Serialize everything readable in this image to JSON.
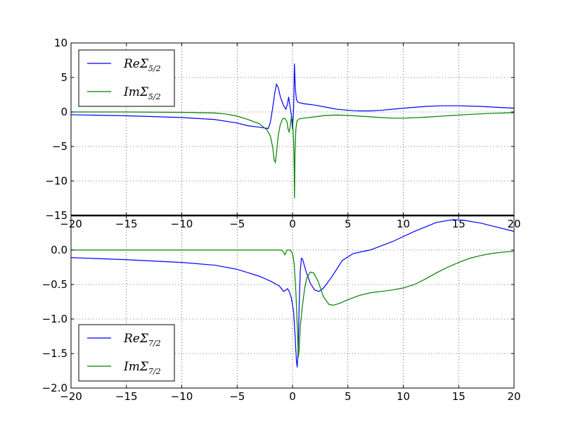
{
  "chart_data": [
    {
      "type": "line",
      "title": "",
      "xlabel": "",
      "ylabel": "",
      "xlim": [
        -20,
        20
      ],
      "ylim": [
        -15,
        10
      ],
      "grid": true,
      "legend_position": "upper-left",
      "x_ticks": [
        -20,
        -15,
        -10,
        -5,
        0,
        5,
        10,
        15,
        20
      ],
      "x_tick_labels": [
        "−20",
        "−15",
        "−10",
        "−5",
        "0",
        "5",
        "10",
        "15",
        "20"
      ],
      "y_ticks": [
        -15,
        -10,
        -5,
        0,
        5,
        10
      ],
      "y_tick_labels": [
        "−15",
        "−10",
        "−5",
        "0",
        "5",
        "10"
      ],
      "series": [
        {
          "name_main": "ReΣ",
          "name_sub": "5/2",
          "color": "#0000ff",
          "points": [
            [
              -20,
              -0.4
            ],
            [
              -15,
              -0.55
            ],
            [
              -10,
              -0.8
            ],
            [
              -7,
              -1.1
            ],
            [
              -5,
              -1.6
            ],
            [
              -4,
              -2.0
            ],
            [
              -3,
              -2.2
            ],
            [
              -2.2,
              -2.4
            ],
            [
              -2.0,
              -1.5
            ],
            [
              -1.8,
              0.5
            ],
            [
              -1.6,
              2.8
            ],
            [
              -1.45,
              4.0
            ],
            [
              -1.3,
              3.6
            ],
            [
              -1.1,
              2.2
            ],
            [
              -0.8,
              0.9
            ],
            [
              -0.6,
              0.4
            ],
            [
              -0.45,
              1.2
            ],
            [
              -0.35,
              2.2
            ],
            [
              -0.25,
              1.0
            ],
            [
              -0.1,
              -0.5
            ],
            [
              0.0,
              -2.5
            ],
            [
              0.1,
              0.5
            ],
            [
              0.17,
              7.0
            ],
            [
              0.25,
              3.5
            ],
            [
              0.35,
              1.8
            ],
            [
              0.5,
              1.4
            ],
            [
              1,
              1.2
            ],
            [
              2,
              1.0
            ],
            [
              3,
              0.7
            ],
            [
              4,
              0.4
            ],
            [
              5,
              0.25
            ],
            [
              6,
              0.15
            ],
            [
              7,
              0.15
            ],
            [
              8,
              0.25
            ],
            [
              10,
              0.55
            ],
            [
              12,
              0.8
            ],
            [
              13.5,
              0.9
            ],
            [
              15,
              0.9
            ],
            [
              17,
              0.8
            ],
            [
              20,
              0.55
            ]
          ]
        },
        {
          "name_main": "ImΣ",
          "name_sub": "5/2",
          "color": "#008000",
          "points": [
            [
              -20,
              0.0
            ],
            [
              -15,
              0.0
            ],
            [
              -10,
              -0.05
            ],
            [
              -7,
              -0.15
            ],
            [
              -6,
              -0.3
            ],
            [
              -5,
              -0.6
            ],
            [
              -4,
              -1.1
            ],
            [
              -3,
              -1.7
            ],
            [
              -2.3,
              -2.6
            ],
            [
              -2.0,
              -3.5
            ],
            [
              -1.8,
              -5.0
            ],
            [
              -1.65,
              -7.0
            ],
            [
              -1.55,
              -7.3
            ],
            [
              -1.45,
              -6.0
            ],
            [
              -1.3,
              -3.5
            ],
            [
              -1.1,
              -1.8
            ],
            [
              -0.9,
              -1.0
            ],
            [
              -0.7,
              -0.9
            ],
            [
              -0.5,
              -1.4
            ],
            [
              -0.4,
              -2.5
            ],
            [
              -0.3,
              -2.9
            ],
            [
              -0.2,
              -2.0
            ],
            [
              -0.1,
              -0.6
            ],
            [
              0.0,
              -1.5
            ],
            [
              0.1,
              -4.0
            ],
            [
              0.15,
              -8.0
            ],
            [
              0.18,
              -12.5
            ],
            [
              0.22,
              -6.0
            ],
            [
              0.3,
              -2.5
            ],
            [
              0.4,
              -1.3
            ],
            [
              0.6,
              -1.0
            ],
            [
              1,
              -0.9
            ],
            [
              2,
              -0.7
            ],
            [
              3,
              -0.5
            ],
            [
              4,
              -0.45
            ],
            [
              5,
              -0.5
            ],
            [
              6,
              -0.6
            ],
            [
              7,
              -0.7
            ],
            [
              8,
              -0.8
            ],
            [
              9,
              -0.9
            ],
            [
              10,
              -0.9
            ],
            [
              12,
              -0.75
            ],
            [
              14,
              -0.55
            ],
            [
              16,
              -0.35
            ],
            [
              18,
              -0.2
            ],
            [
              20,
              -0.1
            ]
          ]
        }
      ]
    },
    {
      "type": "line",
      "title": "",
      "xlabel": "",
      "ylabel": "",
      "xlim": [
        -20,
        20
      ],
      "ylim": [
        -2.0,
        0.5
      ],
      "grid": true,
      "legend_position": "lower-left",
      "x_ticks": [
        -20,
        -15,
        -10,
        -5,
        0,
        5,
        10,
        15,
        20
      ],
      "x_tick_labels": [
        "−20",
        "−15",
        "−10",
        "−5",
        "0",
        "5",
        "10",
        "15",
        "20"
      ],
      "y_ticks": [
        -2.0,
        -1.5,
        -1.0,
        -0.5,
        0.0
      ],
      "y_tick_labels": [
        "−2.0",
        "−1.5",
        "−1.0",
        "−0.5",
        "0.0"
      ],
      "series": [
        {
          "name_main": "ReΣ",
          "name_sub": "7/2",
          "color": "#0000ff",
          "points": [
            [
              -20,
              -0.11
            ],
            [
              -15,
              -0.14
            ],
            [
              -10,
              -0.18
            ],
            [
              -7,
              -0.22
            ],
            [
              -5,
              -0.28
            ],
            [
              -4,
              -0.33
            ],
            [
              -3,
              -0.38
            ],
            [
              -2,
              -0.45
            ],
            [
              -1.2,
              -0.52
            ],
            [
              -0.8,
              -0.6
            ],
            [
              -0.6,
              -0.58
            ],
            [
              -0.45,
              -0.56
            ],
            [
              -0.3,
              -0.6
            ],
            [
              -0.1,
              -0.7
            ],
            [
              0.1,
              -0.9
            ],
            [
              0.25,
              -1.3
            ],
            [
              0.35,
              -1.6
            ],
            [
              0.42,
              -1.7
            ],
            [
              0.5,
              -1.5
            ],
            [
              0.6,
              -0.8
            ],
            [
              0.7,
              -0.3
            ],
            [
              0.8,
              -0.12
            ],
            [
              0.9,
              -0.13
            ],
            [
              1.2,
              -0.3
            ],
            [
              1.6,
              -0.48
            ],
            [
              2.0,
              -0.58
            ],
            [
              2.4,
              -0.6
            ],
            [
              2.8,
              -0.55
            ],
            [
              3.5,
              -0.4
            ],
            [
              4.5,
              -0.15
            ],
            [
              5.5,
              -0.05
            ],
            [
              7,
              0.0
            ],
            [
              9,
              0.12
            ],
            [
              11,
              0.27
            ],
            [
              13,
              0.4
            ],
            [
              14.5,
              0.44
            ],
            [
              15.5,
              0.43
            ],
            [
              17,
              0.39
            ],
            [
              18.5,
              0.33
            ],
            [
              20,
              0.27
            ]
          ]
        },
        {
          "name_main": "ImΣ",
          "name_sub": "7/2",
          "color": "#008000",
          "points": [
            [
              -20,
              0.0
            ],
            [
              -15,
              0.0
            ],
            [
              -10,
              0.0
            ],
            [
              -7,
              0.0
            ],
            [
              -5,
              0.0
            ],
            [
              -3,
              0.0
            ],
            [
              -1.5,
              0.0
            ],
            [
              -1.0,
              0.0
            ],
            [
              -0.8,
              -0.03
            ],
            [
              -0.7,
              -0.07
            ],
            [
              -0.6,
              -0.04
            ],
            [
              -0.5,
              0.0
            ],
            [
              -0.2,
              0.0
            ],
            [
              0.0,
              -0.05
            ],
            [
              0.15,
              -0.2
            ],
            [
              0.3,
              -0.6
            ],
            [
              0.45,
              -1.2
            ],
            [
              0.52,
              -1.55
            ],
            [
              0.6,
              -1.45
            ],
            [
              0.7,
              -1.1
            ],
            [
              0.9,
              -0.8
            ],
            [
              1.1,
              -0.55
            ],
            [
              1.3,
              -0.4
            ],
            [
              1.6,
              -0.32
            ],
            [
              1.9,
              -0.33
            ],
            [
              2.3,
              -0.45
            ],
            [
              2.8,
              -0.68
            ],
            [
              3.3,
              -0.79
            ],
            [
              3.7,
              -0.8
            ],
            [
              4.3,
              -0.77
            ],
            [
              5,
              -0.72
            ],
            [
              6,
              -0.66
            ],
            [
              7,
              -0.62
            ],
            [
              8,
              -0.6
            ],
            [
              9,
              -0.58
            ],
            [
              10,
              -0.55
            ],
            [
              11,
              -0.5
            ],
            [
              12,
              -0.42
            ],
            [
              13,
              -0.33
            ],
            [
              14,
              -0.25
            ],
            [
              15,
              -0.18
            ],
            [
              16,
              -0.12
            ],
            [
              17,
              -0.08
            ],
            [
              18,
              -0.05
            ],
            [
              19,
              -0.03
            ],
            [
              20,
              -0.02
            ]
          ]
        }
      ]
    }
  ]
}
